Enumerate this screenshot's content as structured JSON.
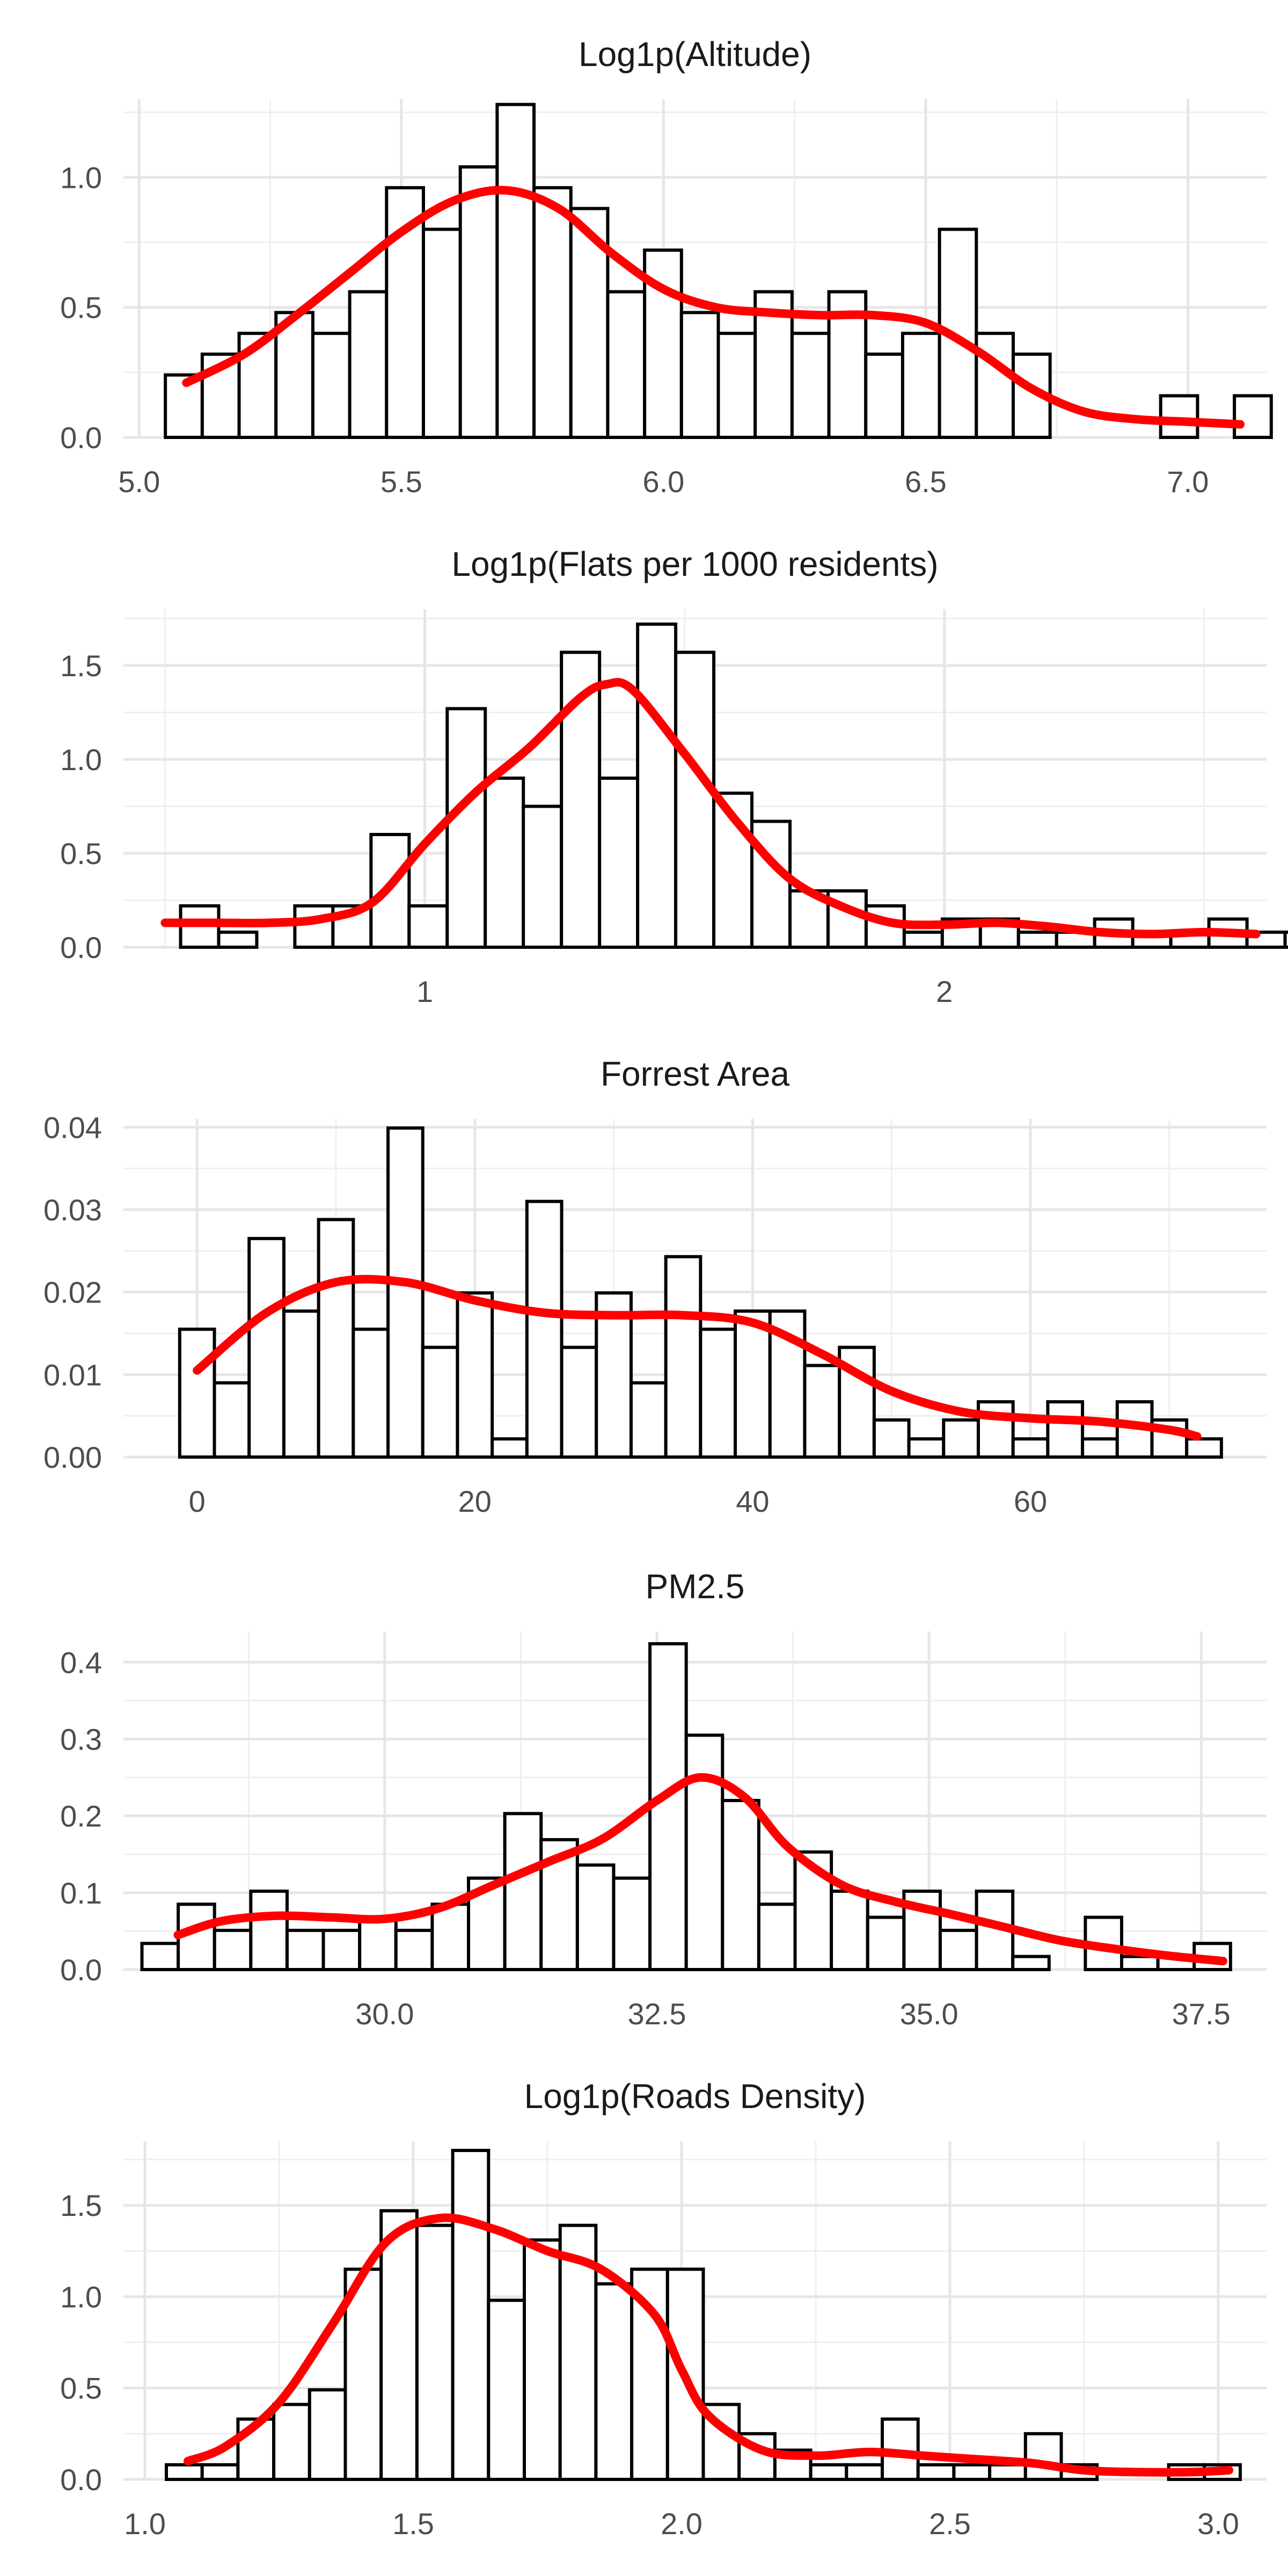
{
  "chart_data": [
    {
      "type": "bar",
      "title": "Log1p(Altitude)",
      "xlabel": "",
      "ylabel": "",
      "xlim": [
        4.97,
        7.15
      ],
      "ylim": [
        0,
        1.3
      ],
      "xticks": [
        5.0,
        5.5,
        6.0,
        6.5,
        7.0
      ],
      "xtick_labels": [
        "5.0",
        "5.5",
        "6.0",
        "6.5",
        "7.0"
      ],
      "yticks": [
        0.0,
        0.5,
        1.0
      ],
      "ytick_labels": [
        "0.0",
        "0.5",
        "1.0"
      ],
      "bins": {
        "start": 5.05,
        "width": 0.0703
      },
      "values": [
        0.24,
        0.32,
        0.4,
        0.48,
        0.4,
        0.56,
        0.96,
        0.8,
        1.04,
        1.28,
        0.96,
        0.88,
        0.56,
        0.72,
        0.48,
        0.4,
        0.56,
        0.4,
        0.56,
        0.32,
        0.4,
        0.8,
        0.4,
        0.32,
        0,
        0,
        0,
        0.16,
        0,
        0.16
      ],
      "density": {
        "x": [
          5.09,
          5.2,
          5.3,
          5.4,
          5.5,
          5.6,
          5.7,
          5.8,
          5.9,
          6.0,
          6.1,
          6.2,
          6.3,
          6.4,
          6.5,
          6.6,
          6.7,
          6.8,
          6.9,
          7.0,
          7.1
        ],
        "y": [
          0.21,
          0.32,
          0.47,
          0.63,
          0.79,
          0.91,
          0.95,
          0.88,
          0.71,
          0.57,
          0.5,
          0.48,
          0.47,
          0.47,
          0.44,
          0.33,
          0.19,
          0.1,
          0.07,
          0.06,
          0.05
        ]
      }
    },
    {
      "type": "bar",
      "title": "Log1p(Flats per 1000 residents)",
      "xlabel": "",
      "ylabel": "",
      "xlim": [
        0.42,
        2.62
      ],
      "ylim": [
        0,
        1.8
      ],
      "xticks": [
        1,
        2
      ],
      "xtick_labels": [
        "1",
        "2"
      ],
      "yticks": [
        0.0,
        0.5,
        1.0,
        1.5
      ],
      "ytick_labels": [
        "0.0",
        "0.5",
        "1.0",
        "1.5"
      ],
      "bins": {
        "start": 0.53,
        "width": 0.0733
      },
      "values": [
        0.22,
        0.08,
        0,
        0.22,
        0.22,
        0.6,
        0.22,
        1.27,
        0.9,
        0.75,
        1.57,
        0.9,
        1.72,
        1.57,
        0.82,
        0.67,
        0.3,
        0.3,
        0.22,
        0.08,
        0.15,
        0.15,
        0.08,
        0.08,
        0.15,
        0.08,
        0.08,
        0.15,
        0.08,
        0.08
      ],
      "density": {
        "x": [
          0.5,
          0.6,
          0.7,
          0.8,
          0.9,
          1.0,
          1.1,
          1.2,
          1.3,
          1.35,
          1.4,
          1.5,
          1.6,
          1.7,
          1.8,
          1.9,
          2.0,
          2.1,
          2.2,
          2.3,
          2.4,
          2.5,
          2.6
        ],
        "y": [
          0.13,
          0.13,
          0.13,
          0.15,
          0.24,
          0.55,
          0.83,
          1.06,
          1.33,
          1.4,
          1.37,
          1.03,
          0.67,
          0.37,
          0.22,
          0.13,
          0.12,
          0.13,
          0.11,
          0.08,
          0.07,
          0.08,
          0.07
        ]
      }
    },
    {
      "type": "bar",
      "title": "Forrest Area",
      "xlabel": "",
      "ylabel": "",
      "xlim": [
        -5.3,
        77.0
      ],
      "ylim": [
        0,
        0.041
      ],
      "xticks": [
        0,
        20,
        40,
        60
      ],
      "xtick_labels": [
        "0",
        "20",
        "40",
        "60"
      ],
      "yticks": [
        0.0,
        0.01,
        0.02,
        0.03,
        0.04
      ],
      "ytick_labels": [
        "0.00",
        "0.01",
        "0.02",
        "0.03",
        "0.04"
      ],
      "bins": {
        "start": -1.25,
        "width": 2.5
      },
      "values": [
        0.0155,
        0.009,
        0.0265,
        0.0177,
        0.0288,
        0.0155,
        0.0399,
        0.0133,
        0.0199,
        0.0022,
        0.031,
        0.0133,
        0.0199,
        0.009,
        0.0243,
        0.0155,
        0.0177,
        0.0177,
        0.0111,
        0.0133,
        0.0045,
        0.0022,
        0.0045,
        0.0067,
        0.0022,
        0.0067,
        0.0022,
        0.0067,
        0.0045,
        0.0022
      ],
      "density": {
        "x": [
          0,
          5,
          10,
          15,
          20,
          25,
          30,
          35,
          40,
          45,
          50,
          55,
          60,
          65,
          70,
          72
        ],
        "y": [
          0.0105,
          0.0175,
          0.0212,
          0.0212,
          0.019,
          0.0175,
          0.0172,
          0.0172,
          0.0163,
          0.0125,
          0.008,
          0.0055,
          0.0047,
          0.0043,
          0.0033,
          0.0025
        ]
      }
    },
    {
      "type": "bar",
      "title": "PM2.5",
      "xlabel": "",
      "ylabel": "",
      "xlim": [
        27.6,
        38.1
      ],
      "ylim": [
        0,
        0.44
      ],
      "xticks": [
        30.0,
        32.5,
        35.0,
        37.5
      ],
      "xtick_labels": [
        "30.0",
        "32.5",
        "35.0",
        "37.5"
      ],
      "yticks": [
        0.0,
        0.1,
        0.2,
        0.3,
        0.4
      ],
      "ytick_labels": [
        "0.0",
        "0.1",
        "0.2",
        "0.3",
        "0.4"
      ],
      "bins": {
        "start": 27.77,
        "width": 0.3333
      },
      "values": [
        0.034,
        0.085,
        0.051,
        0.102,
        0.051,
        0.051,
        0.068,
        0.051,
        0.085,
        0.119,
        0.203,
        0.169,
        0.136,
        0.119,
        0.424,
        0.305,
        0.22,
        0.085,
        0.153,
        0.102,
        0.068,
        0.102,
        0.051,
        0.102,
        0.017,
        0,
        0.068,
        0.017,
        0.017,
        0.034
      ],
      "density": {
        "x": [
          28.1,
          28.5,
          29.0,
          29.5,
          30.0,
          30.5,
          31.0,
          31.5,
          32.0,
          32.5,
          32.9,
          33.3,
          33.7,
          34.2,
          34.7,
          35.2,
          35.7,
          36.2,
          36.7,
          37.2,
          37.7
        ],
        "y": [
          0.045,
          0.063,
          0.07,
          0.068,
          0.066,
          0.08,
          0.11,
          0.14,
          0.17,
          0.22,
          0.25,
          0.225,
          0.16,
          0.11,
          0.088,
          0.072,
          0.055,
          0.038,
          0.027,
          0.018,
          0.011
        ]
      }
    },
    {
      "type": "bar",
      "title": "Log1p(Roads Density)",
      "xlabel": "",
      "ylabel": "",
      "xlim": [
        0.96,
        3.09
      ],
      "ylim": [
        0,
        1.85
      ],
      "xticks": [
        1.0,
        1.5,
        2.0,
        2.5,
        3.0
      ],
      "xtick_labels": [
        "1.0",
        "1.5",
        "2.0",
        "2.5",
        "3.0"
      ],
      "yticks": [
        0.0,
        0.5,
        1.0,
        1.5
      ],
      "ytick_labels": [
        "0.0",
        "0.5",
        "1.0",
        "1.5"
      ],
      "bins": {
        "start": 1.04,
        "width": 0.0667
      },
      "values": [
        0.08,
        0.08,
        0.33,
        0.41,
        0.49,
        1.15,
        1.47,
        1.39,
        1.8,
        0.98,
        1.31,
        1.39,
        1.07,
        1.15,
        1.15,
        0.41,
        0.25,
        0.16,
        0.08,
        0.08,
        0.33,
        0.08,
        0.08,
        0.08,
        0.25,
        0.08,
        0,
        0,
        0.08,
        0.08
      ],
      "density": {
        "x": [
          1.08,
          1.15,
          1.25,
          1.35,
          1.45,
          1.55,
          1.65,
          1.75,
          1.85,
          1.95,
          2.0,
          2.05,
          2.15,
          2.25,
          2.35,
          2.45,
          2.55,
          2.65,
          2.75,
          2.85,
          2.95,
          3.02
        ],
        "y": [
          0.1,
          0.18,
          0.42,
          0.85,
          1.3,
          1.43,
          1.37,
          1.25,
          1.15,
          0.9,
          0.6,
          0.35,
          0.16,
          0.13,
          0.15,
          0.13,
          0.11,
          0.09,
          0.05,
          0.04,
          0.04,
          0.05
        ]
      }
    }
  ]
}
